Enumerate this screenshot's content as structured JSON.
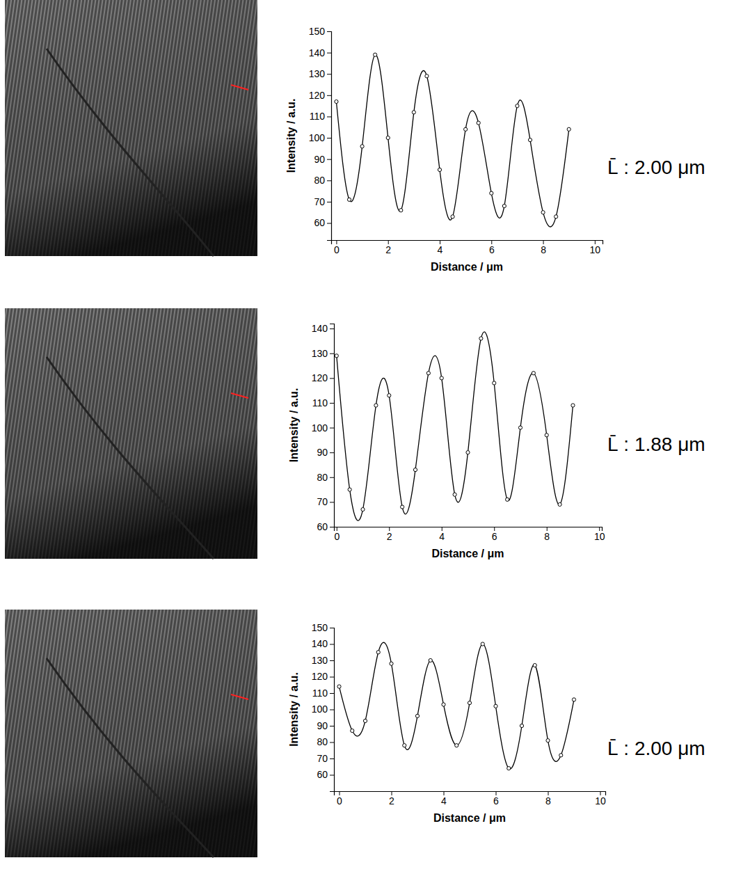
{
  "chart_data": [
    {
      "type": "line",
      "xlabel": "Distance / μm",
      "ylabel": "Intensity / a.u.",
      "annotation": "L̄ : 2.00 μm",
      "x": [
        0,
        0.5,
        1,
        1.5,
        2,
        2.5,
        3,
        3.5,
        4,
        4.5,
        5,
        5.5,
        6,
        6.5,
        7,
        7.5,
        8,
        8.5,
        9
      ],
      "series": [
        {
          "color": "#000000",
          "marker": "circle",
          "values": [
            117,
            71,
            96,
            139,
            100,
            66,
            112,
            129,
            85,
            63,
            104,
            107,
            74,
            68,
            115,
            99,
            65,
            63,
            104
          ]
        }
      ],
      "xlim": [
        -0.2,
        10.3
      ],
      "xticks": [
        0,
        2,
        4,
        6,
        8,
        10
      ],
      "ylim": [
        52,
        150
      ],
      "yticks": [
        60,
        70,
        80,
        90,
        100,
        110,
        120,
        130,
        140,
        150
      ]
    },
    {
      "type": "line",
      "xlabel": "Distance / μm",
      "ylabel": "Intensity / a.u.",
      "annotation": "L̄ : 1.88 μm",
      "x": [
        0,
        0.5,
        1,
        1.5,
        2,
        2.5,
        3,
        3.5,
        4,
        4.5,
        5,
        5.5,
        6,
        6.5,
        7,
        7.5,
        8,
        8.5,
        9
      ],
      "series": [
        {
          "color": "#000000",
          "marker": "circle",
          "values": [
            129,
            75,
            67,
            109,
            113,
            68,
            83,
            122,
            120,
            73,
            90,
            136,
            118,
            71,
            100,
            122,
            97,
            69,
            109
          ]
        }
      ],
      "xlim": [
        -0.1,
        10.1
      ],
      "xticks": [
        0,
        2,
        4,
        6,
        8,
        10
      ],
      "ylim": [
        60,
        142
      ],
      "yticks": [
        60,
        70,
        80,
        90,
        100,
        110,
        120,
        130,
        140
      ]
    },
    {
      "type": "line",
      "xlabel": "Distance / μm",
      "ylabel": "Intensity / a.u.",
      "annotation": "L̄ : 2.00 μm",
      "x": [
        0,
        0.5,
        1,
        1.5,
        2,
        2.5,
        3,
        3.5,
        4,
        4.5,
        5,
        5.5,
        6,
        6.5,
        7,
        7.5,
        8,
        8.5,
        9
      ],
      "series": [
        {
          "color": "#000000",
          "marker": "circle",
          "values": [
            114,
            87,
            93,
            135,
            128,
            78,
            96,
            130,
            103,
            78,
            104,
            140,
            102,
            64,
            90,
            127,
            81,
            72,
            106
          ]
        }
      ],
      "xlim": [
        -0.2,
        10.2
      ],
      "xticks": [
        0,
        2,
        4,
        6,
        8,
        10
      ],
      "ylim": [
        50,
        150
      ],
      "yticks": [
        60,
        70,
        80,
        90,
        100,
        110,
        120,
        130,
        140,
        150
      ]
    }
  ]
}
